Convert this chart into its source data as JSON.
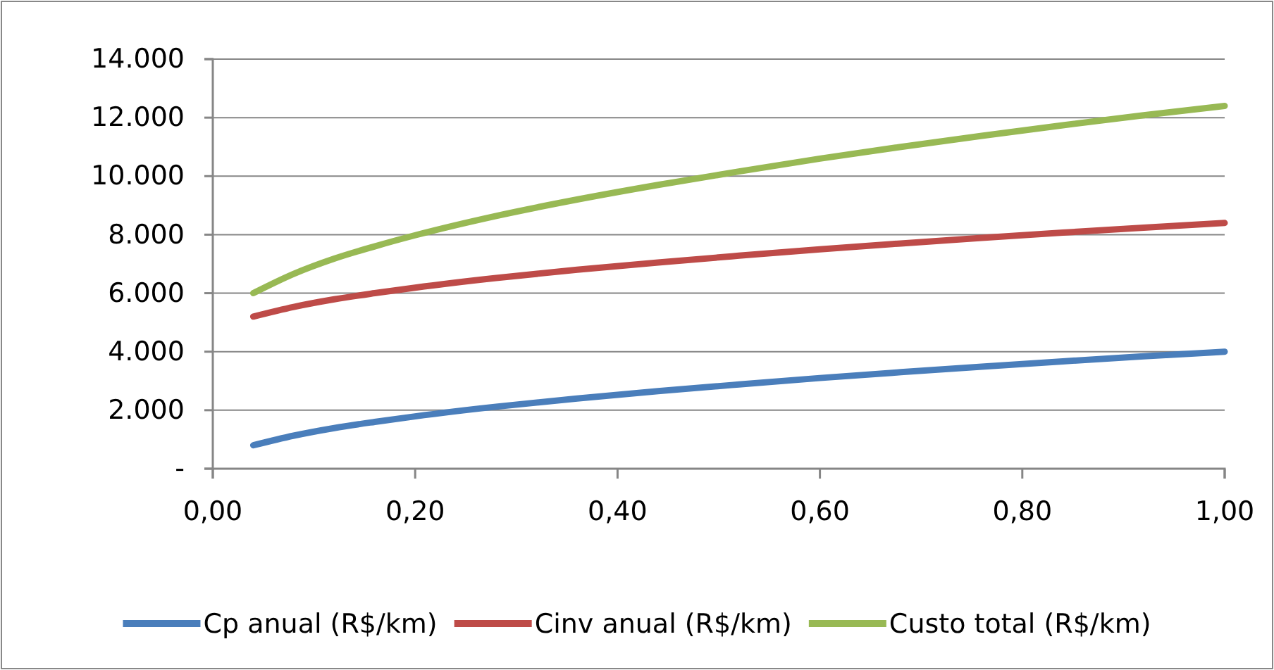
{
  "chart_data": {
    "type": "line",
    "x": [
      0.04,
      0.08,
      0.12,
      0.16,
      0.2,
      0.28,
      0.36,
      0.44,
      0.52,
      0.6,
      0.68,
      0.76,
      0.84,
      0.92,
      1.0
    ],
    "series": [
      {
        "name": "Cp anual (R$/km)",
        "color": "#4a7ebb",
        "values": [
          800,
          1130,
          1390,
          1600,
          1790,
          2120,
          2400,
          2650,
          2880,
          3100,
          3300,
          3490,
          3670,
          3840,
          4000
        ]
      },
      {
        "name": "Cinv anual (R$/km)",
        "color": "#be4b48",
        "values": [
          5200,
          5530,
          5790,
          6000,
          6190,
          6520,
          6800,
          7050,
          7280,
          7500,
          7700,
          7890,
          8070,
          8240,
          8400
        ]
      },
      {
        "name": "Custo total (R$/km)",
        "color": "#98b954",
        "values": [
          6000,
          6660,
          7180,
          7600,
          7980,
          8640,
          9200,
          9700,
          10160,
          10600,
          11000,
          11380,
          11740,
          12080,
          12400
        ]
      }
    ],
    "xlim": [
      0,
      1
    ],
    "xticks": [
      {
        "value": 0,
        "label": "0,00"
      },
      {
        "value": 0.2,
        "label": "0,20"
      },
      {
        "value": 0.4,
        "label": "0,40"
      },
      {
        "value": 0.6,
        "label": "0,60"
      },
      {
        "value": 0.8,
        "label": "0,80"
      },
      {
        "value": 1,
        "label": "1,00"
      }
    ],
    "ylim": [
      0,
      14000
    ],
    "yticks": [
      {
        "value": 0,
        "label": "-"
      },
      {
        "value": 2000,
        "label": "2.000"
      },
      {
        "value": 4000,
        "label": "4.000"
      },
      {
        "value": 6000,
        "label": "6.000"
      },
      {
        "value": 8000,
        "label": "8.000"
      },
      {
        "value": 10000,
        "label": "10.000"
      },
      {
        "value": 12000,
        "label": "12.000"
      },
      {
        "value": 14000,
        "label": "14.000"
      }
    ],
    "grid": "y",
    "legend": "bottom",
    "marker": "none",
    "line_style": "solid"
  }
}
